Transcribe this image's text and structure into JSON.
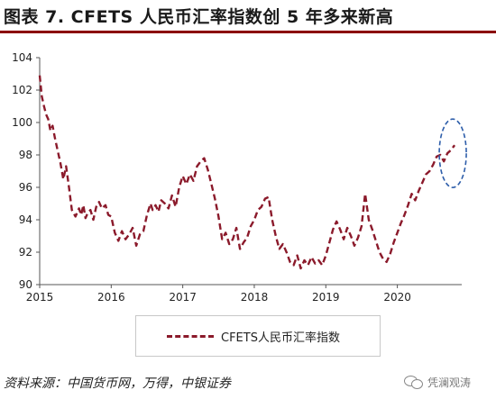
{
  "title": "图表 7. CFETS 人民币汇率指数创 5 年多来新高",
  "legend_label": "CFETS人民币汇率指数",
  "source": "资料来源：中国货币网，万得，中银证券",
  "watermark": "凭澜观涛",
  "colors": {
    "series": "#8b1a2b",
    "highlight": "#2e5eaa",
    "title_rule": "#8b0000"
  },
  "chart_data": {
    "type": "line",
    "ylim": [
      90,
      104
    ],
    "yticks": [
      90,
      92,
      94,
      96,
      98,
      100,
      102,
      104
    ],
    "xlim": [
      2015.0,
      2020.9
    ],
    "xticks": [
      2015,
      2016,
      2017,
      2018,
      2019,
      2020
    ],
    "xtick_labels": [
      "2015",
      "2016",
      "2017",
      "2018",
      "2019",
      "2020"
    ],
    "grid": false,
    "legend": "bottom",
    "annotation": "dashed ellipse highlighting latest values (2020.6–2020.8)",
    "series": [
      {
        "name": "CFETS人民币汇率指数",
        "style": "dashed",
        "x": [
          2015.0,
          2015.03,
          2015.06,
          2015.09,
          2015.12,
          2015.15,
          2015.18,
          2015.21,
          2015.25,
          2015.29,
          2015.33,
          2015.37,
          2015.41,
          2015.45,
          2015.5,
          2015.55,
          2015.58,
          2015.61,
          2015.64,
          2015.67,
          2015.71,
          2015.75,
          2015.79,
          2015.83,
          2015.87,
          2015.92,
          2015.96,
          2016.0,
          2016.05,
          2016.1,
          2016.15,
          2016.2,
          2016.25,
          2016.3,
          2016.35,
          2016.4,
          2016.45,
          2016.5,
          2016.55,
          2016.58,
          2016.62,
          2016.66,
          2016.7,
          2016.75,
          2016.8,
          2016.85,
          2016.9,
          2016.95,
          2017.0,
          2017.05,
          2017.1,
          2017.15,
          2017.2,
          2017.25,
          2017.3,
          2017.35,
          2017.4,
          2017.45,
          2017.5,
          2017.55,
          2017.6,
          2017.65,
          2017.7,
          2017.75,
          2017.8,
          2017.85,
          2017.9,
          2017.95,
          2018.0,
          2018.05,
          2018.1,
          2018.15,
          2018.2,
          2018.25,
          2018.3,
          2018.35,
          2018.4,
          2018.45,
          2018.5,
          2018.55,
          2018.6,
          2018.65,
          2018.7,
          2018.75,
          2018.8,
          2018.85,
          2018.9,
          2018.95,
          2019.0,
          2019.05,
          2019.1,
          2019.15,
          2019.2,
          2019.25,
          2019.3,
          2019.35,
          2019.4,
          2019.45,
          2019.5,
          2019.55,
          2019.6,
          2019.65,
          2019.7,
          2019.75,
          2019.8,
          2019.85,
          2019.9,
          2019.95,
          2020.0,
          2020.05,
          2020.1,
          2020.15,
          2020.2,
          2020.25,
          2020.3,
          2020.35,
          2020.4,
          2020.45,
          2020.5,
          2020.55,
          2020.6,
          2020.65,
          2020.7,
          2020.75,
          2020.8
        ],
        "values": [
          102.9,
          101.6,
          101.0,
          100.5,
          100.2,
          99.5,
          99.8,
          99.1,
          98.3,
          97.5,
          96.5,
          97.3,
          96.0,
          94.6,
          94.2,
          94.7,
          94.3,
          94.9,
          94.1,
          94.4,
          94.6,
          94.0,
          94.8,
          95.1,
          94.7,
          94.9,
          94.3,
          94.2,
          93.2,
          92.7,
          93.3,
          92.8,
          93.1,
          93.5,
          92.4,
          93.1,
          93.3,
          94.3,
          95.0,
          94.6,
          94.9,
          94.5,
          95.2,
          95.0,
          94.7,
          95.5,
          94.8,
          96.0,
          96.7,
          96.2,
          96.8,
          96.4,
          97.3,
          97.6,
          97.8,
          97.1,
          96.2,
          95.3,
          94.2,
          92.8,
          93.2,
          92.5,
          92.8,
          93.5,
          92.2,
          92.6,
          92.9,
          93.6,
          94.0,
          94.6,
          94.8,
          95.3,
          95.4,
          94.0,
          93.0,
          92.2,
          92.5,
          92.0,
          91.4,
          91.2,
          91.8,
          91.0,
          91.5,
          91.2,
          91.7,
          91.3,
          91.5,
          91.2,
          91.8,
          92.6,
          93.4,
          93.9,
          93.4,
          92.8,
          93.5,
          93.0,
          92.4,
          92.9,
          93.6,
          95.6,
          94.0,
          93.4,
          92.7,
          92.0,
          91.6,
          91.4,
          91.9,
          92.6,
          93.2,
          93.8,
          94.3,
          94.9,
          95.6,
          95.2,
          95.8,
          96.3,
          96.8,
          97.0,
          97.4,
          97.9,
          98.0,
          97.6,
          98.1,
          98.3,
          98.6
        ]
      }
    ]
  }
}
